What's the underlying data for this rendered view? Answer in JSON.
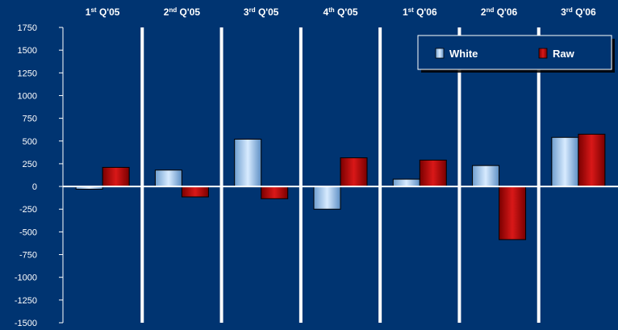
{
  "chart_data": {
    "type": "bar",
    "categories": [
      {
        "base": "1",
        "sup": "st",
        "rest": " Q'05"
      },
      {
        "base": "2",
        "sup": "nd",
        "rest": " Q'05"
      },
      {
        "base": "3",
        "sup": "rd",
        "rest": " Q'05"
      },
      {
        "base": "4",
        "sup": "th",
        "rest": " Q'05"
      },
      {
        "base": "1",
        "sup": "st",
        "rest": " Q'06"
      },
      {
        "base": "2",
        "sup": "nd",
        "rest": " Q'06"
      },
      {
        "base": "3",
        "sup": "rd",
        "rest": " Q'06"
      }
    ],
    "series": [
      {
        "name": "White",
        "values": [
          -30,
          180,
          520,
          -250,
          80,
          230,
          540
        ],
        "color": "#a9cdf0"
      },
      {
        "name": "Raw",
        "values": [
          210,
          -115,
          -135,
          315,
          290,
          -585,
          575
        ],
        "color": "#b50c0c"
      }
    ],
    "ylim": [
      -1500,
      1750
    ],
    "yticks": [
      1750,
      1500,
      1250,
      1000,
      750,
      500,
      250,
      0,
      -250,
      -500,
      -750,
      -1000,
      -1250,
      -1500
    ],
    "legend_position": "top-right",
    "background": "#003471",
    "separator_color": "#ffffff"
  }
}
